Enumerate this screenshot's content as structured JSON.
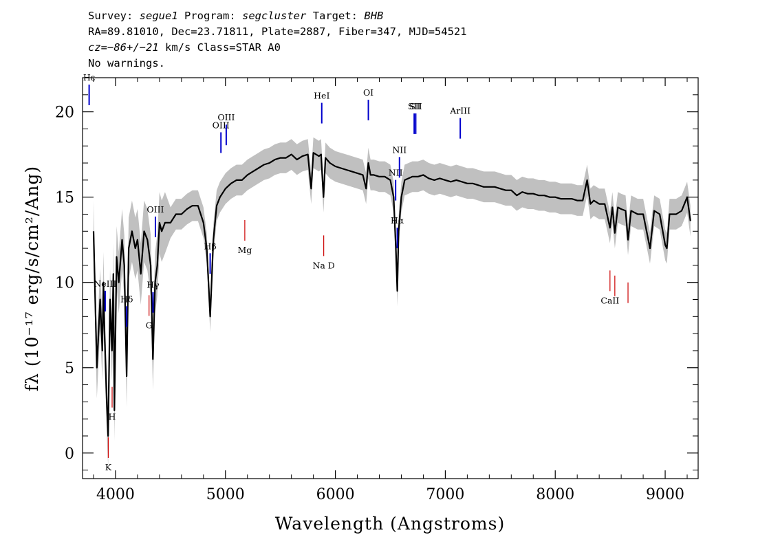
{
  "header": {
    "survey_label": "Survey:",
    "survey": "segue1",
    "program_label": "Program:",
    "program": "segcluster",
    "target_label": "Target:",
    "target": "BHB",
    "line2": "RA=89.81010, Dec=23.71811, Plate=2887, Fiber=347, MJD=54521",
    "cz_label": "cz=",
    "cz_value": "−86+/−21",
    "cz_rest": " km/s Class=STAR A0",
    "line4": "No warnings."
  },
  "chart_data": {
    "type": "line",
    "xlabel": "Wavelength (Angstroms)",
    "ylabel": "fλ (10⁻¹⁷ erg/s/cm²/Ang)",
    "xlim": [
      3700,
      9300
    ],
    "ylim": [
      -1.5,
      22
    ],
    "x_ticks": [
      4000,
      5000,
      6000,
      7000,
      8000,
      9000
    ],
    "y_ticks": [
      0,
      5,
      10,
      15,
      20
    ],
    "grid": false,
    "series": [
      {
        "color": "#000000",
        "error_band_color": "#c0c0c0",
        "points": [
          [
            3800,
            13.0
          ],
          [
            3830,
            5.0
          ],
          [
            3860,
            9.0
          ],
          [
            3880,
            6.0
          ],
          [
            3890,
            10.0
          ],
          [
            3900,
            7.0
          ],
          [
            3920,
            3.0
          ],
          [
            3933,
            1.0
          ],
          [
            3950,
            9.0
          ],
          [
            3968,
            6.0
          ],
          [
            3980,
            10.5
          ],
          [
            3990,
            2.5
          ],
          [
            4010,
            11.5
          ],
          [
            4030,
            10.0
          ],
          [
            4060,
            12.5
          ],
          [
            4080,
            11.0
          ],
          [
            4101,
            4.5
          ],
          [
            4120,
            12.0
          ],
          [
            4150,
            13.0
          ],
          [
            4180,
            12.0
          ],
          [
            4200,
            12.5
          ],
          [
            4230,
            10.5
          ],
          [
            4260,
            13.0
          ],
          [
            4290,
            12.5
          ],
          [
            4320,
            11.0
          ],
          [
            4340,
            5.5
          ],
          [
            4360,
            10.0
          ],
          [
            4380,
            11.0
          ],
          [
            4400,
            13.5
          ],
          [
            4420,
            13.0
          ],
          [
            4450,
            13.5
          ],
          [
            4500,
            13.5
          ],
          [
            4550,
            14.0
          ],
          [
            4600,
            14.0
          ],
          [
            4650,
            14.3
          ],
          [
            4700,
            14.5
          ],
          [
            4750,
            14.5
          ],
          [
            4800,
            13.5
          ],
          [
            4830,
            12.0
          ],
          [
            4861,
            8.0
          ],
          [
            4890,
            12.5
          ],
          [
            4920,
            14.5
          ],
          [
            4950,
            15.0
          ],
          [
            5000,
            15.5
          ],
          [
            5050,
            15.8
          ],
          [
            5100,
            16.0
          ],
          [
            5150,
            16.0
          ],
          [
            5200,
            16.3
          ],
          [
            5250,
            16.5
          ],
          [
            5300,
            16.7
          ],
          [
            5350,
            16.9
          ],
          [
            5400,
            17.0
          ],
          [
            5450,
            17.2
          ],
          [
            5500,
            17.3
          ],
          [
            5550,
            17.3
          ],
          [
            5600,
            17.5
          ],
          [
            5650,
            17.2
          ],
          [
            5700,
            17.4
          ],
          [
            5750,
            17.5
          ],
          [
            5780,
            15.5
          ],
          [
            5800,
            17.6
          ],
          [
            5850,
            17.4
          ],
          [
            5870,
            17.5
          ],
          [
            5892,
            15.0
          ],
          [
            5910,
            17.3
          ],
          [
            5950,
            17.0
          ],
          [
            6000,
            16.8
          ],
          [
            6050,
            16.7
          ],
          [
            6100,
            16.6
          ],
          [
            6150,
            16.5
          ],
          [
            6200,
            16.4
          ],
          [
            6250,
            16.3
          ],
          [
            6280,
            15.5
          ],
          [
            6300,
            17.0
          ],
          [
            6320,
            16.3
          ],
          [
            6350,
            16.3
          ],
          [
            6400,
            16.2
          ],
          [
            6450,
            16.2
          ],
          [
            6500,
            16.0
          ],
          [
            6530,
            15.0
          ],
          [
            6550,
            12.0
          ],
          [
            6563,
            9.5
          ],
          [
            6575,
            13.0
          ],
          [
            6600,
            15.0
          ],
          [
            6630,
            16.0
          ],
          [
            6700,
            16.2
          ],
          [
            6750,
            16.2
          ],
          [
            6800,
            16.3
          ],
          [
            6850,
            16.1
          ],
          [
            6900,
            16.0
          ],
          [
            6950,
            16.1
          ],
          [
            7000,
            16.0
          ],
          [
            7050,
            15.9
          ],
          [
            7100,
            16.0
          ],
          [
            7150,
            15.9
          ],
          [
            7200,
            15.8
          ],
          [
            7250,
            15.8
          ],
          [
            7300,
            15.7
          ],
          [
            7350,
            15.6
          ],
          [
            7400,
            15.6
          ],
          [
            7450,
            15.6
          ],
          [
            7500,
            15.5
          ],
          [
            7550,
            15.4
          ],
          [
            7600,
            15.4
          ],
          [
            7650,
            15.1
          ],
          [
            7700,
            15.3
          ],
          [
            7750,
            15.2
          ],
          [
            7800,
            15.2
          ],
          [
            7850,
            15.1
          ],
          [
            7900,
            15.1
          ],
          [
            7950,
            15.0
          ],
          [
            8000,
            15.0
          ],
          [
            8050,
            14.9
          ],
          [
            8100,
            14.9
          ],
          [
            8150,
            14.9
          ],
          [
            8200,
            14.8
          ],
          [
            8250,
            14.8
          ],
          [
            8290,
            16.0
          ],
          [
            8320,
            14.6
          ],
          [
            8350,
            14.8
          ],
          [
            8400,
            14.6
          ],
          [
            8450,
            14.6
          ],
          [
            8498,
            13.2
          ],
          [
            8520,
            14.4
          ],
          [
            8542,
            12.9
          ],
          [
            8570,
            14.4
          ],
          [
            8600,
            14.3
          ],
          [
            8640,
            14.2
          ],
          [
            8662,
            12.5
          ],
          [
            8690,
            14.2
          ],
          [
            8750,
            14.0
          ],
          [
            8800,
            14.0
          ],
          [
            8862,
            12.0
          ],
          [
            8900,
            14.2
          ],
          [
            8950,
            14.0
          ],
          [
            9000,
            12.2
          ],
          [
            9015,
            12.0
          ],
          [
            9040,
            14.0
          ],
          [
            9100,
            14.0
          ],
          [
            9150,
            14.2
          ],
          [
            9200,
            15.0
          ],
          [
            9230,
            13.6
          ]
        ]
      }
    ],
    "line_markers": [
      {
        "name": "Hε",
        "wavelength": 3760,
        "color": "#0000cc",
        "kind": "emission"
      },
      {
        "name": "NeIII",
        "wavelength": 3906,
        "color": "#0000cc",
        "kind": "emission"
      },
      {
        "name": "Hδ",
        "wavelength": 4102,
        "color": "#0000cc",
        "kind": "emission"
      },
      {
        "name": "Hγ",
        "wavelength": 4341,
        "color": "#0000cc",
        "kind": "emission"
      },
      {
        "name": "OIII",
        "wavelength": 4363,
        "color": "#0000cc",
        "kind": "emission"
      },
      {
        "name": "Hβ",
        "wavelength": 4861,
        "color": "#0000cc",
        "kind": "emission"
      },
      {
        "name": "OIII",
        "wavelength": 4959,
        "color": "#0000cc",
        "kind": "emission"
      },
      {
        "name": "OIII",
        "wavelength": 5007,
        "color": "#0000cc",
        "kind": "emission"
      },
      {
        "name": "HeI",
        "wavelength": 5876,
        "color": "#0000cc",
        "kind": "emission"
      },
      {
        "name": "OI",
        "wavelength": 6300,
        "color": "#0000cc",
        "kind": "emission"
      },
      {
        "name": "NII",
        "wavelength": 6548,
        "color": "#0000cc",
        "kind": "emission"
      },
      {
        "name": "Hα",
        "wavelength": 6563,
        "color": "#0000cc",
        "kind": "emission"
      },
      {
        "name": "NII",
        "wavelength": 6583,
        "color": "#0000cc",
        "kind": "emission"
      },
      {
        "name": "SII",
        "wavelength": 6717,
        "color": "#0000cc",
        "kind": "emission"
      },
      {
        "name": "SII",
        "wavelength": 6731,
        "color": "#0000cc",
        "kind": "emission"
      },
      {
        "name": "ArIII",
        "wavelength": 7136,
        "color": "#0000cc",
        "kind": "emission"
      },
      {
        "name": "K",
        "wavelength": 3934,
        "color": "#cc0000",
        "kind": "absorption"
      },
      {
        "name": "H",
        "wavelength": 3969,
        "color": "#cc0000",
        "kind": "absorption"
      },
      {
        "name": "G",
        "wavelength": 4305,
        "color": "#cc0000",
        "kind": "absorption"
      },
      {
        "name": "Mg",
        "wavelength": 5176,
        "color": "#cc0000",
        "kind": "absorption"
      },
      {
        "name": "Na D",
        "wavelength": 5894,
        "color": "#cc0000",
        "kind": "absorption"
      },
      {
        "name": "CaII",
        "wavelength": 8498,
        "color": "#cc0000",
        "kind": "absorption"
      },
      {
        "name": "CaII",
        "wavelength": 8542,
        "color": "#cc0000",
        "kind": "absorption"
      },
      {
        "name": "CaII",
        "wavelength": 8662,
        "color": "#cc0000",
        "kind": "absorption"
      }
    ]
  }
}
